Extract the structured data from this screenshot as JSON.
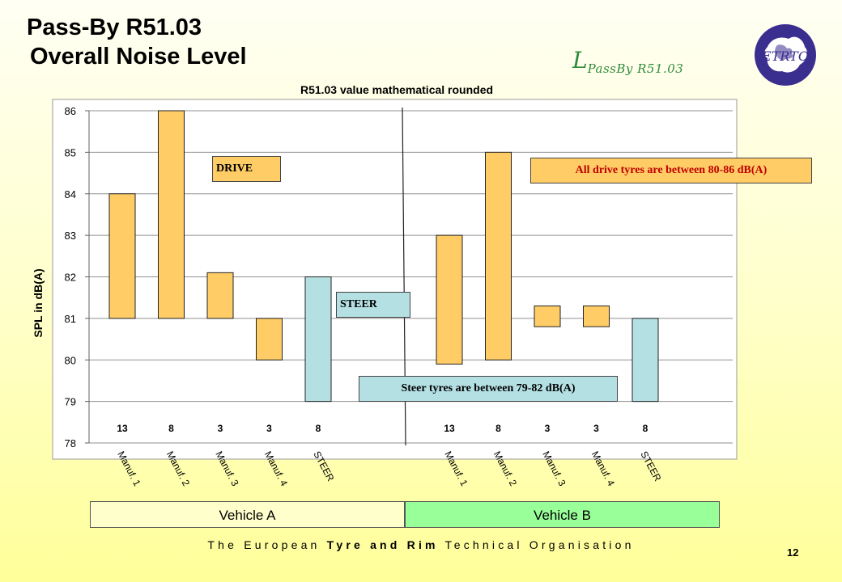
{
  "header": {
    "title_line1": "Pass-By R51.03",
    "title_line2": "Overall  Noise Level",
    "formula_main": "L",
    "formula_sub": "PassBy R51.03",
    "logo_text": "ETRTO"
  },
  "chart_data": {
    "type": "bar",
    "subtype": "floating-range",
    "title": "R51.03 value mathematical rounded",
    "ylabel": "SPL in dB(A)",
    "xlabel": "",
    "ylim": [
      78,
      86
    ],
    "yticks": [
      78,
      79,
      80,
      81,
      82,
      83,
      84,
      85,
      86
    ],
    "grid": true,
    "colors": {
      "drive": "#ffcc66",
      "steer": "#b4e0e4"
    },
    "groups": [
      {
        "name": "Vehicle A",
        "bars": [
          {
            "label": "Manuf. 1",
            "low": 81.0,
            "high": 84.0,
            "count": "13",
            "kind": "drive"
          },
          {
            "label": "Manuf. 2",
            "low": 81.0,
            "high": 86.0,
            "count": "8",
            "kind": "drive"
          },
          {
            "label": "Manuf. 3",
            "low": 81.0,
            "high": 82.1,
            "count": "3",
            "kind": "drive"
          },
          {
            "label": "Manuf. 4",
            "low": 80.0,
            "high": 81.0,
            "count": "3",
            "kind": "drive"
          },
          {
            "label": "STEER",
            "low": 79.0,
            "high": 82.0,
            "count": "8",
            "kind": "steer"
          }
        ]
      },
      {
        "name": "Vehicle B",
        "bars": [
          {
            "label": "Manuf. 1",
            "low": 79.9,
            "high": 83.0,
            "count": "13",
            "kind": "drive"
          },
          {
            "label": "Manuf. 2",
            "low": 80.0,
            "high": 85.0,
            "count": "8",
            "kind": "drive"
          },
          {
            "label": "Manuf. 3",
            "low": 80.8,
            "high": 81.3,
            "count": "3",
            "kind": "drive"
          },
          {
            "label": "Manuf. 4",
            "low": 80.8,
            "high": 81.3,
            "count": "3",
            "kind": "drive"
          },
          {
            "label": "STEER",
            "low": 79.0,
            "high": 81.0,
            "count": "8",
            "kind": "steer"
          }
        ]
      }
    ],
    "annotations": {
      "drive_label": "DRIVE",
      "steer_label": "STEER",
      "drive_range": "All drive tyres are between 80-86 dB(A)",
      "steer_range": "Steer tyres are between 79-82 dB(A)"
    }
  },
  "vehicles": {
    "a": "Vehicle A",
    "b": "Vehicle B"
  },
  "footer": {
    "prefix": "The European ",
    "bold": "Tyre and Rim",
    "suffix": " Technical Organisation",
    "page": "12"
  }
}
